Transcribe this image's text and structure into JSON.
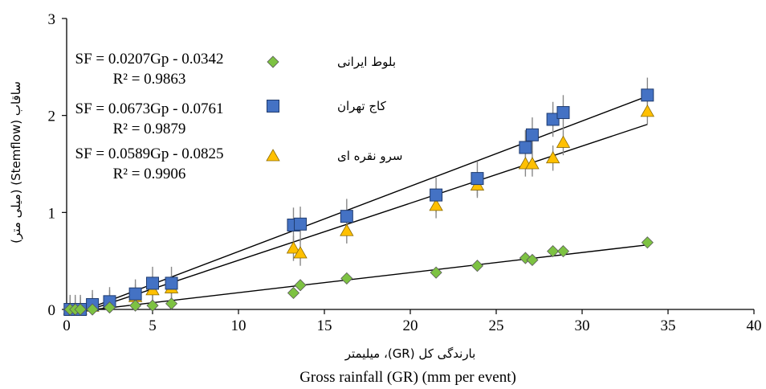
{
  "chart_data": {
    "type": "scatter",
    "xlim": [
      0,
      40
    ],
    "ylim": [
      0,
      3
    ],
    "x_ticks": [
      "0",
      "5",
      "10",
      "15",
      "20",
      "25",
      "30",
      "35",
      "40"
    ],
    "y_ticks": [
      "0",
      "1",
      "2",
      "3"
    ],
    "xlabel_fa": "بارندگی کل (GR)، میلیمتر",
    "xlabel_en": "Gross rainfall (GR)  (mm per event)",
    "ylabel": "ساقاب (Stemflow) (میلی متر)",
    "grid": false,
    "legend_position": "top-left",
    "series": [
      {
        "name": "بلوط ایرانی",
        "marker": "diamond",
        "color": "#7DC242",
        "equation": "SF = 0.0207Gp - 0.0342",
        "r2": "R² = 0.9863",
        "slope": 0.0207,
        "intercept": -0.0342,
        "x": [
          0.2,
          0.5,
          0.8,
          1.5,
          2.5,
          4.0,
          5.0,
          6.1,
          13.2,
          13.6,
          16.3,
          21.5,
          23.9,
          26.7,
          27.1,
          28.3,
          28.9,
          33.8
        ],
        "y": [
          0.0,
          0.0,
          0.0,
          0.0,
          0.02,
          0.04,
          0.04,
          0.06,
          0.17,
          0.25,
          0.32,
          0.38,
          0.45,
          0.53,
          0.51,
          0.6,
          0.6,
          0.69
        ],
        "err": [
          0,
          0,
          0,
          0,
          0,
          0,
          0,
          0,
          0,
          0,
          0,
          0,
          0,
          0,
          0,
          0,
          0,
          0
        ]
      },
      {
        "name": "کاج تهران",
        "marker": "square",
        "color": "#4472C4",
        "equation": "SF = 0.0673Gp - 0.0761",
        "r2": "R² = 0.9879",
        "slope": 0.0673,
        "intercept": -0.0761,
        "x": [
          0.2,
          0.5,
          0.8,
          1.5,
          2.5,
          4.0,
          5.0,
          6.1,
          13.2,
          13.6,
          16.3,
          21.5,
          23.9,
          26.7,
          27.1,
          28.3,
          28.9,
          33.8
        ],
        "y": [
          0.0,
          0.0,
          0.0,
          0.05,
          0.08,
          0.16,
          0.27,
          0.27,
          0.87,
          0.88,
          0.96,
          1.18,
          1.35,
          1.67,
          1.8,
          1.96,
          2.03,
          2.21
        ],
        "err": [
          0.15,
          0.15,
          0.15,
          0.15,
          0.15,
          0.15,
          0.17,
          0.17,
          0.18,
          0.18,
          0.18,
          0.18,
          0.18,
          0.18,
          0.18,
          0.18,
          0.18,
          0.18
        ]
      },
      {
        "name": "سرو نقره ای",
        "marker": "triangle",
        "color": "#FFC000",
        "equation": "SF = 0.0589Gp - 0.0825",
        "r2": "R² = 0.9906",
        "slope": 0.0589,
        "intercept": -0.0825,
        "x": [
          0.2,
          0.5,
          0.8,
          1.5,
          2.5,
          4.0,
          5.0,
          6.1,
          13.2,
          13.6,
          16.3,
          21.5,
          23.9,
          26.7,
          27.1,
          28.3,
          28.9,
          33.8
        ],
        "y": [
          0.0,
          0.0,
          0.0,
          0.03,
          0.07,
          0.13,
          0.2,
          0.22,
          0.63,
          0.58,
          0.81,
          1.07,
          1.28,
          1.5,
          1.5,
          1.56,
          1.72,
          2.04
        ],
        "err": [
          0.13,
          0.13,
          0.13,
          0.13,
          0.13,
          0.13,
          0.13,
          0.13,
          0.13,
          0.13,
          0.13,
          0.13,
          0.13,
          0.13,
          0.13,
          0.13,
          0.13,
          0.13
        ]
      }
    ]
  }
}
